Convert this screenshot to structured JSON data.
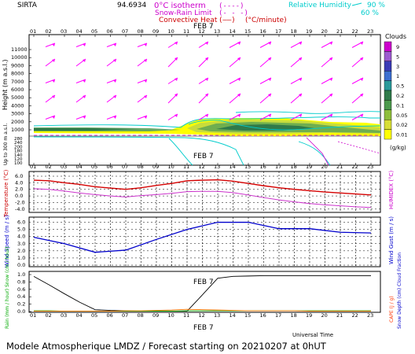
{
  "header": {
    "station": "SIRTA",
    "coords": "94.6934",
    "legend_isotherm": "0°C isotherm",
    "legend_snowrain": "Snow-Rain Limit",
    "legend_convective": "Convective Heat",
    "legend_convective_unit": "(°C/minute)",
    "rh_label": "Relative Humidity",
    "rh_90": "90 %",
    "rh_60": "60 %"
  },
  "date_label": "FEB  7",
  "hours": [
    "01",
    "02",
    "03",
    "04",
    "05",
    "06",
    "07",
    "08",
    "09",
    "10",
    "11",
    "12",
    "13",
    "14",
    "15",
    "16",
    "17",
    "18",
    "19",
    "20",
    "21",
    "22",
    "23"
  ],
  "panel1": {
    "ylabel": "Height (m a.s.l.)",
    "ylabel_low": "Up to 300 m a.s.l.",
    "ticks_top": [
      "11000",
      "10000",
      "9000",
      "8000",
      "7000",
      "6000",
      "5000",
      "4000",
      "3000",
      "2000",
      "1000"
    ],
    "ticks_low": [
      "280",
      "240",
      "200",
      "180",
      "140",
      "120",
      "100"
    ]
  },
  "clouds": {
    "title": "Clouds",
    "unit": "(g/kg)",
    "levels": [
      "9",
      "5",
      "3",
      "1",
      "0.5",
      "0.2",
      "0.1",
      "0.05",
      "0.02",
      "0.01"
    ],
    "colors": [
      "#cc00cc",
      "#9d5bd0",
      "#3b3bb6",
      "#3c6fd0",
      "#2a9a9a",
      "#2f7a4a",
      "#4d9a4d",
      "#8fbf3c",
      "#d8de35",
      "#ffff00"
    ]
  },
  "panel2": {
    "ylabel_left": "Temperature (°C)",
    "ylabel_right": "HUMIDEX (°C)",
    "ticks": [
      "6.0",
      "4.0",
      "2.0",
      "0.0",
      "-2.0",
      "-4.0"
    ]
  },
  "panel3": {
    "ylabel_left": "Wind Speed (m / s)",
    "ylabel_right": "Wind Gust (m / s)",
    "ticks": [
      "6.0",
      "5.0",
      "4.0",
      "3.0",
      "2.0",
      "1.0",
      "0.0"
    ]
  },
  "panel4": {
    "ylabel_left": "Rain (mm / hour) Snow (cm / hour)",
    "ylabel_right_1": "CAPE (J / g)",
    "ylabel_right_2": "Snow Depth (cm) Cloud Fraction",
    "ticks": [
      "1.0",
      "0.8",
      "0.6",
      "0.4",
      "0.2",
      "0.0"
    ]
  },
  "universal_time": "Universal Time",
  "footer": "Modele Atmospherique LMDZ / Forecast starting on 20210207 at 0hUT",
  "chart_data": [
    {
      "type": "line",
      "title": "Temperature / HUMIDEX",
      "x": [
        1,
        2,
        3,
        4,
        5,
        6,
        7,
        8,
        9,
        10,
        11,
        12,
        13,
        14,
        15,
        16,
        17,
        18,
        19,
        20,
        21,
        22,
        23
      ],
      "series": [
        {
          "name": "Temperature",
          "color": "#d40000",
          "values": [
            4.8,
            4.6,
            4.0,
            3.5,
            2.8,
            2.4,
            2.0,
            2.5,
            3.2,
            3.8,
            4.6,
            4.8,
            4.9,
            4.5,
            3.8,
            3.1,
            2.5,
            2.0,
            1.6,
            1.2,
            0.9,
            0.6,
            0.3
          ]
        },
        {
          "name": "HUMIDEX",
          "color": "#cc33cc",
          "values": [
            2.2,
            2.0,
            1.5,
            0.9,
            0.4,
            0.0,
            -0.3,
            0.1,
            0.4,
            0.8,
            1.3,
            1.4,
            1.4,
            1.0,
            0.3,
            -0.5,
            -1.2,
            -1.8,
            -2.3,
            -2.7,
            -3.0,
            -3.3,
            -3.5
          ]
        }
      ],
      "ylim": [
        -5,
        6.5
      ]
    },
    {
      "type": "line",
      "title": "Wind Speed",
      "x": [
        1,
        3,
        5,
        7,
        9,
        11,
        13,
        15,
        17,
        19,
        21,
        23
      ],
      "series": [
        {
          "name": "Wind Speed",
          "color": "#0000cc",
          "values": [
            3.9,
            3.0,
            1.8,
            2.1,
            3.6,
            5.0,
            6.0,
            6.0,
            5.1,
            5.1,
            4.6,
            4.5
          ]
        }
      ],
      "ylim": [
        0,
        6.5
      ]
    },
    {
      "type": "line",
      "title": "Rain / Cloud Fraction",
      "x": [
        1,
        2,
        3,
        4,
        5,
        6,
        7,
        8,
        9,
        10,
        11,
        12,
        13,
        14,
        15,
        16,
        17,
        18,
        19,
        20,
        21,
        22,
        23
      ],
      "series": [
        {
          "name": "Cloud Fraction",
          "color": "#000000",
          "values": [
            0.95,
            0.72,
            0.48,
            0.25,
            0.05,
            0.03,
            0.02,
            0.01,
            0.01,
            0.01,
            0.01,
            0.45,
            0.9,
            0.95,
            0.96,
            0.97,
            0.97,
            0.97,
            0.97,
            0.97,
            0.97,
            0.97,
            0.97
          ]
        },
        {
          "name": "Rain",
          "color": "#00aa00",
          "values": [
            0.02,
            0.02,
            0.01,
            0.01,
            0.01,
            0.01,
            0.01,
            0.01,
            0.01,
            0.01,
            0.02,
            0.02,
            0.02,
            0.02,
            0.02,
            0.02,
            0.02,
            0.02,
            0.02,
            0.02,
            0.02,
            0.02,
            0.02
          ]
        },
        {
          "name": "CAPE",
          "color": "#ff7700",
          "values": [
            0.01,
            0.01,
            0.01,
            0.01,
            0.01,
            0.01,
            0.02,
            0.02,
            0.03,
            0.04,
            0.06,
            0.05,
            0.04,
            0.03,
            0.02,
            0.02,
            0.02,
            0.02,
            0.01,
            0.01,
            0.01,
            0.01,
            0.01
          ]
        }
      ],
      "ylim": [
        0,
        1
      ]
    }
  ]
}
